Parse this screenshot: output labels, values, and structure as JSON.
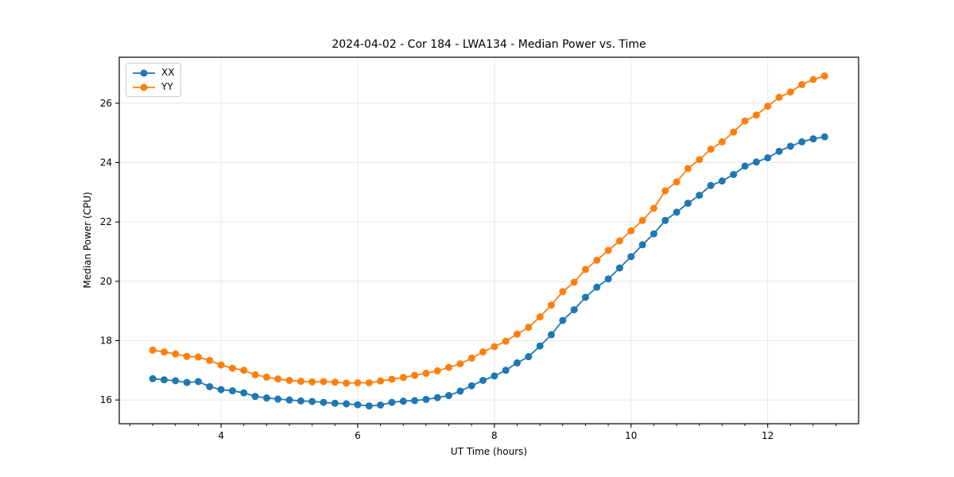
{
  "figure": {
    "background": "#ffffff"
  },
  "chart_data": {
    "type": "line",
    "title": "2024-04-02 - Cor 184 - LWA134 - Median Power vs. Time",
    "xlabel": "UT Time (hours)",
    "ylabel": "Median Power (CPU)",
    "xlim": [
      2.51,
      13.33
    ],
    "ylim": [
      15.2,
      27.55
    ],
    "xticks": [
      4,
      6,
      8,
      10,
      12
    ],
    "yticks": [
      16,
      18,
      20,
      22,
      24,
      26
    ],
    "minor_x_step": 0.3333,
    "grid": true,
    "grid_color": "#e8e8e8",
    "spine_color": "#000000",
    "legend_position": "upper-left",
    "marker": "circle",
    "x": [
      3.0,
      3.167,
      3.333,
      3.5,
      3.667,
      3.833,
      4.0,
      4.167,
      4.333,
      4.5,
      4.667,
      4.833,
      5.0,
      5.167,
      5.333,
      5.5,
      5.667,
      5.833,
      6.0,
      6.167,
      6.333,
      6.5,
      6.667,
      6.833,
      7.0,
      7.167,
      7.333,
      7.5,
      7.667,
      7.833,
      8.0,
      8.167,
      8.333,
      8.5,
      8.667,
      8.833,
      9.0,
      9.167,
      9.333,
      9.5,
      9.667,
      9.833,
      10.0,
      10.167,
      10.333,
      10.5,
      10.667,
      10.833,
      11.0,
      11.167,
      11.333,
      11.5,
      11.667,
      11.833,
      12.0,
      12.167,
      12.333,
      12.5,
      12.667,
      12.833
    ],
    "series": [
      {
        "name": "XX",
        "color": "#1f77b4",
        "values": [
          16.72,
          16.68,
          16.65,
          16.59,
          16.62,
          16.45,
          16.35,
          16.31,
          16.24,
          16.12,
          16.07,
          16.03,
          16.0,
          15.97,
          15.95,
          15.92,
          15.89,
          15.87,
          15.84,
          15.8,
          15.83,
          15.92,
          15.96,
          15.98,
          16.02,
          16.08,
          16.15,
          16.3,
          16.48,
          16.66,
          16.81,
          17.0,
          17.25,
          17.46,
          17.82,
          18.2,
          18.68,
          19.04,
          19.46,
          19.8,
          20.08,
          20.45,
          20.83,
          21.23,
          21.6,
          22.05,
          22.33,
          22.63,
          22.9,
          23.23,
          23.38,
          23.6,
          23.88,
          24.02,
          24.16,
          24.38,
          24.55,
          24.7,
          24.8,
          24.87
        ]
      },
      {
        "name": "YY",
        "color": "#ff7f0e",
        "values": [
          17.68,
          17.62,
          17.55,
          17.47,
          17.45,
          17.33,
          17.18,
          17.07,
          17.0,
          16.85,
          16.77,
          16.71,
          16.66,
          16.63,
          16.61,
          16.62,
          16.6,
          16.57,
          16.58,
          16.58,
          16.64,
          16.7,
          16.76,
          16.83,
          16.9,
          16.98,
          17.1,
          17.22,
          17.41,
          17.62,
          17.8,
          17.98,
          18.22,
          18.45,
          18.8,
          19.2,
          19.65,
          19.97,
          20.4,
          20.71,
          21.04,
          21.36,
          21.7,
          22.05,
          22.46,
          23.05,
          23.35,
          23.8,
          24.1,
          24.45,
          24.7,
          25.03,
          25.4,
          25.6,
          25.9,
          26.2,
          26.38,
          26.63,
          26.8,
          26.92
        ]
      }
    ]
  }
}
